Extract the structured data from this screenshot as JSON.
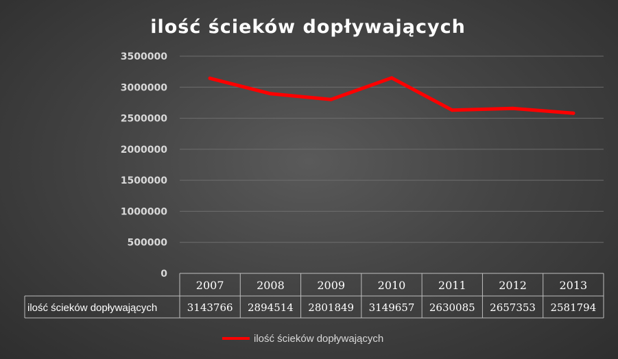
{
  "chart_data": {
    "type": "line",
    "title": "ilość ścieków dopływających",
    "categories": [
      "2007",
      "2008",
      "2009",
      "2010",
      "2011",
      "2012",
      "2013"
    ],
    "series": [
      {
        "name": "ilość ścieków dopływających",
        "values": [
          3143766,
          2894514,
          2801849,
          3149657,
          2630085,
          2657353,
          2581794
        ],
        "color": "#ff0000"
      }
    ],
    "yticks": [
      "0",
      "500000",
      "1000000",
      "1500000",
      "2000000",
      "2500000",
      "3000000",
      "3500000"
    ],
    "ylim": [
      0,
      3500000
    ],
    "grid": true,
    "legend_position": "bottom",
    "data_table": {
      "row_label": "ilość ścieków dopływających",
      "values": [
        "3143766",
        "2894514",
        "2801849",
        "3149657",
        "2630085",
        "2657353",
        "2581794"
      ]
    }
  }
}
